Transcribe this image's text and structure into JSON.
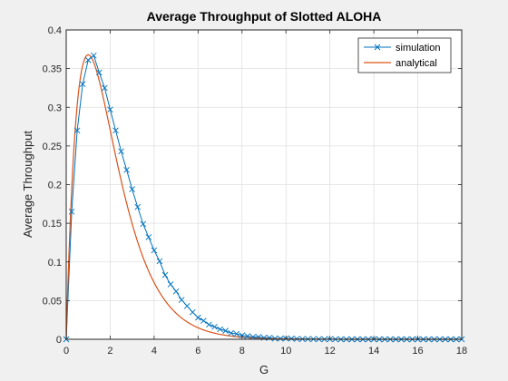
{
  "chart_data": {
    "type": "line",
    "title": "Average Throughput of Slotted ALOHA",
    "xlabel": "G",
    "ylabel": "Average Throughput",
    "xlim": [
      0,
      18
    ],
    "ylim": [
      0,
      0.4
    ],
    "xticks": [
      0,
      2,
      4,
      6,
      8,
      10,
      12,
      14,
      16,
      18
    ],
    "xtick_labels": [
      "0",
      "2",
      "4",
      "6",
      "8",
      "10",
      "12",
      "14",
      "16",
      "18"
    ],
    "yticks": [
      0,
      0.05,
      0.1,
      0.15,
      0.2,
      0.25,
      0.3,
      0.35,
      0.4
    ],
    "ytick_labels": [
      "0",
      "0.05",
      "0.1",
      "0.15",
      "0.2",
      "0.25",
      "0.3",
      "0.35",
      "0.4"
    ],
    "grid": true,
    "legend_position": "top-right",
    "series": [
      {
        "name": "simulation",
        "color": "#0072BD",
        "marker": "x",
        "x": [
          0,
          0.25,
          0.5,
          0.75,
          1,
          1.25,
          1.5,
          1.75,
          2,
          2.25,
          2.5,
          2.75,
          3,
          3.25,
          3.5,
          3.75,
          4,
          4.25,
          4.5,
          4.75,
          5,
          5.25,
          5.5,
          5.75,
          6,
          6.25,
          6.5,
          6.75,
          7,
          7.25,
          7.5,
          7.75,
          8,
          8.25,
          8.5,
          8.75,
          9,
          9.25,
          9.5,
          9.75,
          10,
          10.25,
          10.5,
          10.75,
          11,
          11.25,
          11.5,
          11.75,
          12,
          12.25,
          12.5,
          12.75,
          13,
          13.25,
          13.5,
          13.75,
          14,
          14.25,
          14.5,
          14.75,
          15,
          15.25,
          15.5,
          15.75,
          16,
          16.25,
          16.5,
          16.75,
          17,
          17.25,
          17.5,
          17.75,
          18
        ],
        "y": [
          0,
          0.165,
          0.27,
          0.33,
          0.361,
          0.367,
          0.345,
          0.325,
          0.297,
          0.27,
          0.243,
          0.219,
          0.194,
          0.171,
          0.149,
          0.132,
          0.115,
          0.101,
          0.083,
          0.071,
          0.062,
          0.051,
          0.043,
          0.035,
          0.028,
          0.024,
          0.019,
          0.016,
          0.013,
          0.011,
          0.008,
          0.007,
          0.005,
          0.004,
          0.003,
          0.003,
          0.002,
          0.002,
          0.001,
          0.001,
          0.001,
          0.001,
          0.0005,
          0.0004,
          0.0003,
          0.0002,
          0.0002,
          0.0001,
          0.0001,
          0.0001,
          0,
          0,
          0,
          0,
          0,
          0,
          0,
          0,
          0,
          0,
          0,
          0,
          0,
          0,
          0,
          0,
          0,
          0,
          0,
          0,
          0,
          0,
          0
        ]
      },
      {
        "name": "analytical",
        "color": "#D95319",
        "marker": "none",
        "formula": "G*exp(-G)"
      }
    ]
  }
}
